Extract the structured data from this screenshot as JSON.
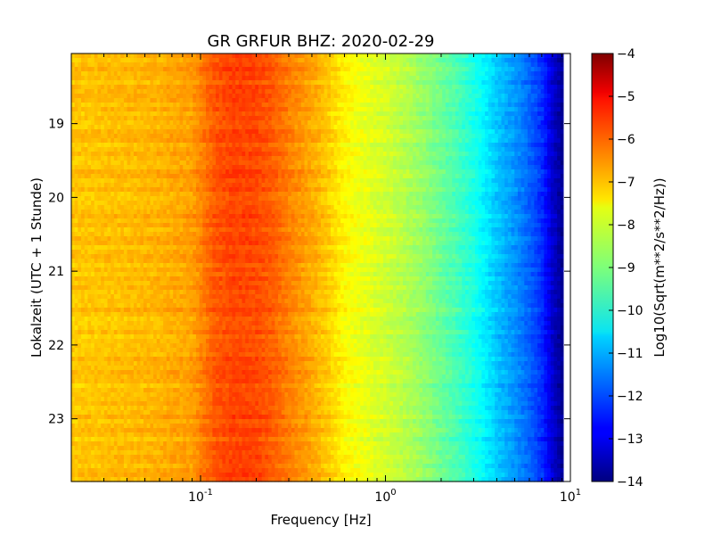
{
  "chart_data": {
    "type": "heatmap",
    "title": "GR GRFUR BHZ: 2020-02-29",
    "xlabel": "Frequency [Hz]",
    "ylabel": "Lokalzeit (UTC + 1 Stunde)",
    "x_scale": "log",
    "xlim": [
      0.02,
      10
    ],
    "x_ticks": [
      {
        "value": 0.1,
        "base": "10",
        "exp": "-1"
      },
      {
        "value": 1,
        "base": "10",
        "exp": "0"
      },
      {
        "value": 10,
        "base": "10",
        "exp": "1"
      }
    ],
    "ylim": [
      18.05,
      23.85
    ],
    "y_ticks": [
      19,
      20,
      21,
      22,
      23
    ],
    "y_inverted": true,
    "colorbar": {
      "label": "Log10(Sqrt(m**2/s**2/Hz))",
      "range": [
        -14,
        -4
      ],
      "ticks": [
        -4,
        -5,
        -6,
        -7,
        -8,
        -9,
        -10,
        -11,
        -12,
        -13,
        -14
      ],
      "colormap": "jet"
    },
    "spectrum_profile": {
      "frequency_hz": [
        0.02,
        0.04,
        0.06,
        0.09,
        0.12,
        0.15,
        0.2,
        0.25,
        0.3,
        0.4,
        0.5,
        0.6,
        0.8,
        1.0,
        1.3,
        1.6,
        2.0,
        2.5,
        3.0,
        3.5,
        4.0,
        5.0,
        6.0,
        7.0,
        8.0,
        9.0
      ],
      "log10_amplitude": [
        -7.2,
        -7.1,
        -7.0,
        -6.8,
        -6.1,
        -5.9,
        -5.95,
        -6.2,
        -6.5,
        -6.9,
        -7.3,
        -7.7,
        -8.0,
        -8.2,
        -8.5,
        -8.8,
        -9.2,
        -9.6,
        -10.0,
        -10.4,
        -10.8,
        -11.3,
        -11.8,
        -12.3,
        -13.2,
        -13.8
      ]
    }
  }
}
